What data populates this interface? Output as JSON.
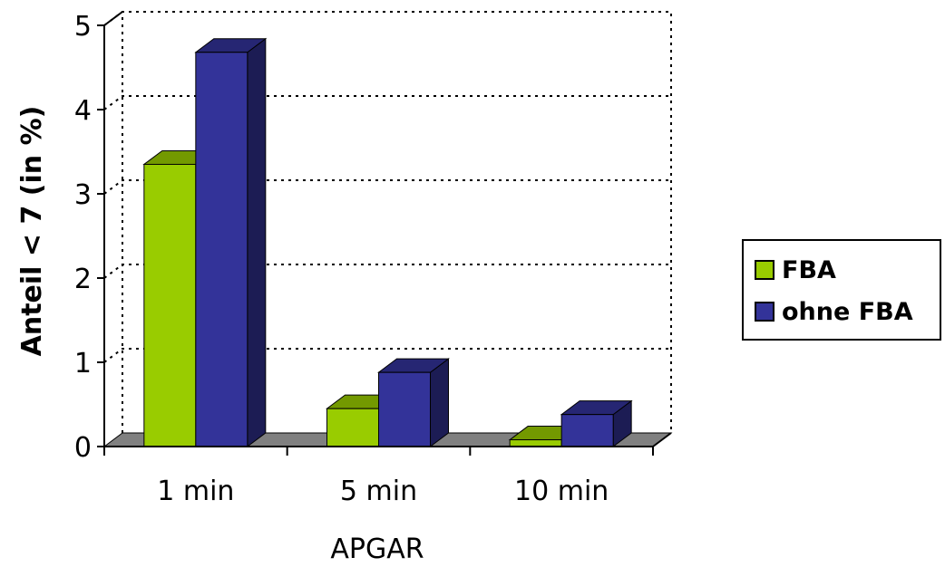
{
  "chart_data": {
    "type": "bar",
    "variant": "3d-clustered",
    "categories": [
      "1 min",
      "5 min",
      "10 min"
    ],
    "series": [
      {
        "name": "FBA",
        "values": [
          3.35,
          0.45,
          0.08
        ],
        "color": "#99cc00"
      },
      {
        "name": "ohne FBA",
        "values": [
          4.68,
          0.88,
          0.38
        ],
        "color": "#333399"
      }
    ],
    "xlabel": "APGAR",
    "ylabel": "Anteil < 7 (in %)",
    "ylim": [
      0,
      5
    ],
    "yticks": [
      "0",
      "1",
      "2",
      "3",
      "4",
      "5"
    ],
    "grid": true,
    "legend_position": "right"
  }
}
